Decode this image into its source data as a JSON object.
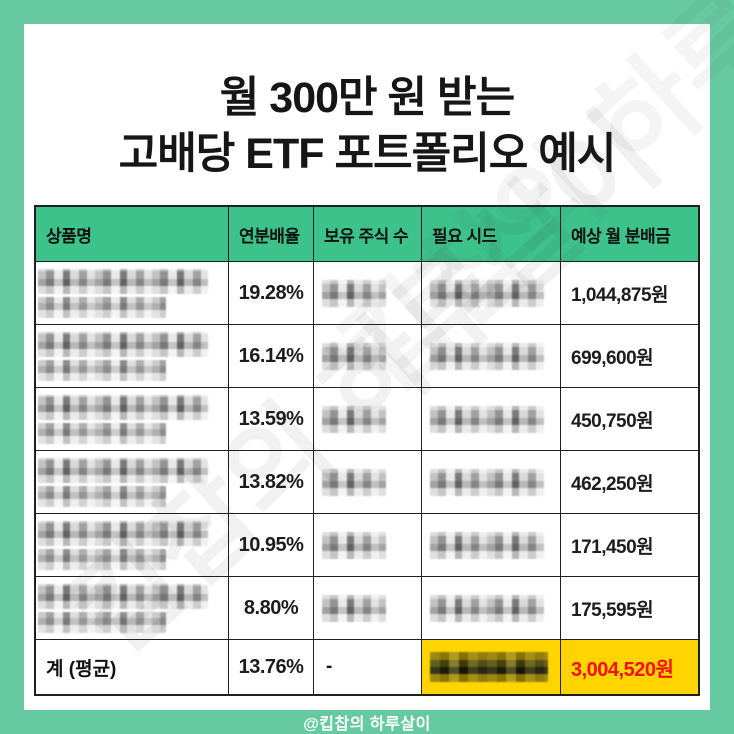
{
  "page": {
    "title_line1": "월 300만 원 받는",
    "title_line2": "고배당 ETF 포트폴리오 예시",
    "footer": "@킵찹의 하루살이",
    "watermark": "킵찹의 하루살이"
  },
  "colors": {
    "frame_green": "#66C9A2",
    "header_green": "#3DC28C",
    "highlight_yellow": "#FFD400",
    "highlight_red": "#F50F0F",
    "table_border": "#1F1F1F"
  },
  "table": {
    "headers": [
      "상품명",
      "연분배율",
      "보유 주식 수",
      "필요 시드",
      "예상 월 분배금"
    ],
    "rows": [
      {
        "name_redacted": true,
        "yield": "19.28%",
        "shares_redacted": true,
        "seed_redacted": true,
        "monthly": "1,044,875원"
      },
      {
        "name_redacted": true,
        "yield": "16.14%",
        "shares_redacted": true,
        "seed_redacted": true,
        "monthly": "699,600원"
      },
      {
        "name_redacted": true,
        "yield": "13.59%",
        "shares_redacted": true,
        "seed_redacted": true,
        "monthly": "450,750원"
      },
      {
        "name_redacted": true,
        "yield": "13.82%",
        "shares_redacted": true,
        "seed_redacted": true,
        "monthly": "462,250원"
      },
      {
        "name_redacted": true,
        "yield": "10.95%",
        "shares_redacted": true,
        "seed_redacted": true,
        "monthly": "171,450원"
      },
      {
        "name_redacted": true,
        "yield": "8.80%",
        "shares_redacted": true,
        "seed_redacted": true,
        "monthly": "175,595원"
      }
    ],
    "total": {
      "label": "계 (평균)",
      "yield": "13.76%",
      "shares": "-",
      "seed_redacted": true,
      "monthly": "3,004,520원"
    }
  }
}
